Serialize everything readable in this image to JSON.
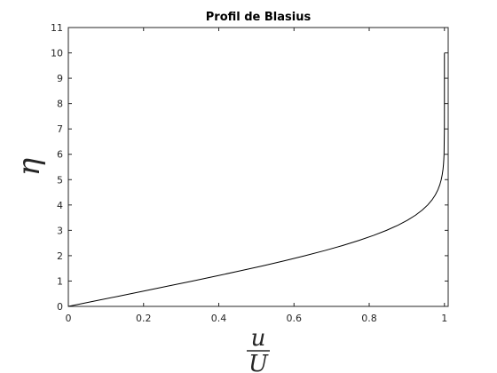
{
  "chart_data": {
    "type": "line",
    "title": "Profil de Blasius",
    "xlabel": {
      "numerator": "u",
      "denominator": "U"
    },
    "ylabel": "η",
    "xlim": [
      0,
      1.01
    ],
    "ylim": [
      0,
      11
    ],
    "xticks": [
      0,
      0.2,
      0.4,
      0.6,
      0.8,
      1
    ],
    "xtick_labels": [
      "0",
      "0.2",
      "0.4",
      "0.6",
      "0.8",
      "1"
    ],
    "yticks": [
      0,
      1,
      2,
      3,
      4,
      5,
      6,
      7,
      8,
      9,
      10,
      11
    ],
    "ytick_labels": [
      "0",
      "1",
      "2",
      "3",
      "4",
      "5",
      "6",
      "7",
      "8",
      "9",
      "10",
      "11"
    ],
    "grid": false,
    "legend": "none",
    "series": [
      {
        "color": "#000000",
        "x": [
          0,
          0.0664,
          0.1328,
          0.1989,
          0.2647,
          0.3298,
          0.3938,
          0.4563,
          0.5168,
          0.5748,
          0.6298,
          0.6813,
          0.729,
          0.7725,
          0.8115,
          0.846,
          0.8761,
          0.9018,
          0.9233,
          0.9411,
          0.9555,
          0.967,
          0.9759,
          0.9827,
          0.9878,
          0.9915,
          0.9942,
          0.9962,
          0.9975,
          0.9984,
          0.999,
          0.9999,
          1.0,
          1.0
        ],
        "y": [
          0,
          0.2,
          0.4,
          0.6,
          0.8,
          1.0,
          1.2,
          1.4,
          1.6,
          1.8,
          2.0,
          2.2,
          2.4,
          2.6,
          2.8,
          3.0,
          3.2,
          3.4,
          3.6,
          3.8,
          4.0,
          4.2,
          4.4,
          4.6,
          4.8,
          5.0,
          5.2,
          5.4,
          5.6,
          5.8,
          6.0,
          7.0,
          8.0,
          10.0
        ]
      }
    ]
  }
}
